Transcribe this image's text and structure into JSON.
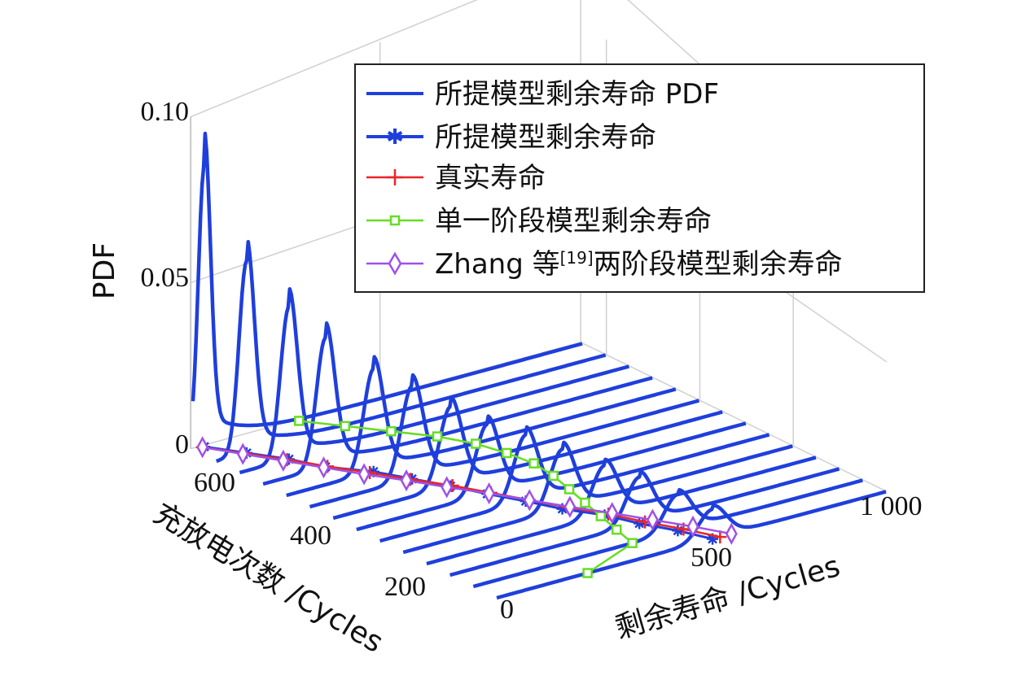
{
  "chart_data": {
    "type": "line",
    "zlabel": "PDF",
    "xlabel": "剩余寿命 /Cycles",
    "ylabel": "充放电次数 /Cycles",
    "z_ticks": [
      "0",
      "0.05",
      "0.10"
    ],
    "x_ticks": [
      "500",
      "1 000"
    ],
    "x_zero_tick": "0",
    "y_ticks": [
      "200",
      "400",
      "600"
    ],
    "zlim": [
      0,
      0.1
    ],
    "xlim": [
      0,
      1000
    ],
    "ylim": [
      0,
      650
    ],
    "grid": true,
    "legend_position": "top-right",
    "colors": {
      "pdf": "#1f3fdc",
      "proposed_rul": "#1f3fdc",
      "true_life": "#e8262a",
      "single_stage": "#66dd22",
      "zhang": "#a050e8"
    },
    "legend": [
      {
        "key": "pdf",
        "label": "所提模型剩余寿命 PDF",
        "marker": "line"
      },
      {
        "key": "proposed_rul",
        "label": "所提模型剩余寿命",
        "marker": "star"
      },
      {
        "key": "true_life",
        "label": "真实寿命",
        "marker": "plus"
      },
      {
        "key": "single_stage",
        "label": "单一阶段模型剩余寿命",
        "marker": "square"
      },
      {
        "key": "zhang",
        "label_prefix": "Zhang 等",
        "label_sup": "[19]",
        "label_suffix": "两阶段模型剩余寿命",
        "marker": "diamond"
      }
    ],
    "cycles": [
      650,
      600,
      550,
      500,
      450,
      400,
      350,
      300,
      250,
      200,
      150,
      100,
      50,
      0
    ],
    "pdf_curves": [
      {
        "cycle": 650,
        "peak_rul": 30,
        "peak_pdf": 0.085,
        "width": 16
      },
      {
        "cycle": 600,
        "peak_rul": 80,
        "peak_pdf": 0.058,
        "width": 20
      },
      {
        "cycle": 550,
        "peak_rul": 130,
        "peak_pdf": 0.046,
        "width": 22
      },
      {
        "cycle": 500,
        "peak_rul": 165,
        "peak_pdf": 0.039,
        "width": 24
      },
      {
        "cycle": 450,
        "peak_rul": 230,
        "peak_pdf": 0.031,
        "width": 26
      },
      {
        "cycle": 400,
        "peak_rul": 270,
        "peak_pdf": 0.028,
        "width": 28
      },
      {
        "cycle": 350,
        "peak_rul": 310,
        "peak_pdf": 0.024,
        "width": 29
      },
      {
        "cycle": 300,
        "peak_rul": 345,
        "peak_pdf": 0.021,
        "width": 30
      },
      {
        "cycle": 250,
        "peak_rul": 385,
        "peak_pdf": 0.02,
        "width": 31
      },
      {
        "cycle": 200,
        "peak_rul": 420,
        "peak_pdf": 0.018,
        "width": 32
      },
      {
        "cycle": 150,
        "peak_rul": 470,
        "peak_pdf": 0.015,
        "width": 33
      },
      {
        "cycle": 100,
        "peak_rul": 500,
        "peak_pdf": 0.014,
        "width": 34
      },
      {
        "cycle": 50,
        "peak_rul": 540,
        "peak_pdf": 0.011,
        "width": 35
      },
      {
        "cycle": 0,
        "peak_rul": 570,
        "peak_pdf": 0.009,
        "width": 36
      }
    ],
    "series": [
      {
        "key": "proposed_rul",
        "cycle": [
          650,
          600,
          550,
          500,
          450,
          400,
          350,
          300,
          250,
          200,
          150,
          100,
          50,
          0
        ],
        "rul": [
          30,
          80,
          130,
          165,
          230,
          270,
          310,
          345,
          385,
          420,
          470,
          500,
          540,
          570
        ]
      },
      {
        "key": "true_life",
        "cycle": [
          650,
          600,
          550,
          500,
          450,
          400,
          350,
          300,
          250,
          200,
          150,
          100,
          50,
          0
        ],
        "rul": [
          25,
          75,
          125,
          170,
          220,
          265,
          315,
          355,
          395,
          435,
          480,
          515,
          555,
          590
        ]
      },
      {
        "key": "single_stage",
        "cycle": [
          650,
          600,
          550,
          500,
          450,
          400,
          350,
          300,
          250,
          200,
          150,
          100,
          50,
          0
        ],
        "rul": [
          280,
          340,
          400,
          460,
          500,
          520,
          530,
          520,
          500,
          480,
          460,
          440,
          420,
          240
        ]
      },
      {
        "key": "zhang",
        "cycle": [
          650,
          600,
          550,
          500,
          450,
          400,
          350,
          300,
          250,
          200,
          150,
          100,
          50,
          0
        ],
        "rul": [
          25,
          70,
          115,
          160,
          205,
          255,
          300,
          350,
          395,
          440,
          490,
          535,
          580,
          620
        ]
      }
    ]
  }
}
